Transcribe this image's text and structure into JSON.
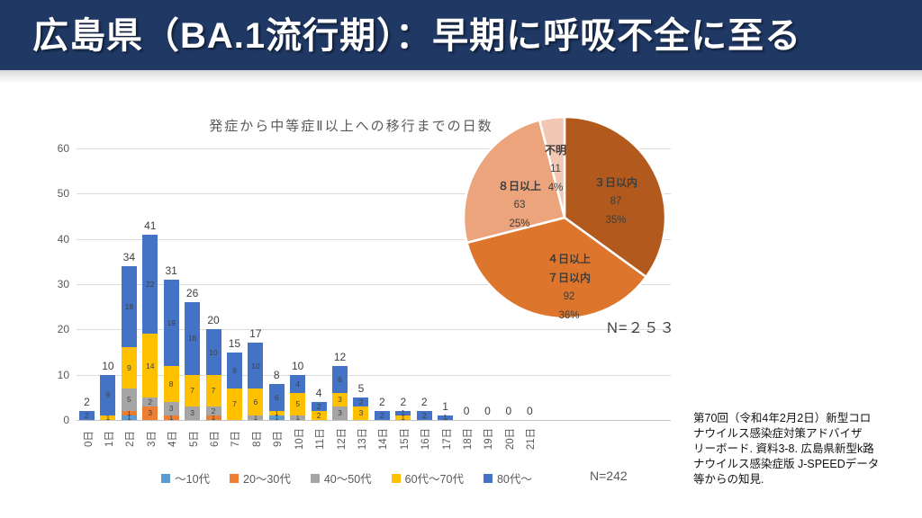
{
  "header": {
    "title": "広島県（BA.1流行期）：早期に呼吸不全に至る",
    "bg_color": "#1f3864",
    "text_color": "#ffffff"
  },
  "chart_data": [
    {
      "type": "bar",
      "stacked": true,
      "title": "発症から中等症Ⅱ以上への移行までの日数",
      "categories": [
        "0日",
        "1日",
        "2日",
        "3日",
        "4日",
        "5日",
        "6日",
        "7日",
        "8日",
        "9日",
        "10日",
        "11日",
        "12日",
        "13日",
        "14日",
        "15日",
        "16日",
        "17日",
        "18日",
        "19日",
        "20日",
        "21日"
      ],
      "series": [
        {
          "name": "～10代",
          "color": "#5b9bd5",
          "values": [
            0,
            0,
            1,
            0,
            0,
            0,
            0,
            0,
            0,
            1,
            0,
            0,
            0,
            0,
            0,
            0,
            0,
            0,
            0,
            0,
            0,
            0
          ]
        },
        {
          "name": "20～30代",
          "color": "#ed7d31",
          "values": [
            0,
            0,
            1,
            3,
            1,
            0,
            1,
            0,
            0,
            0,
            0,
            0,
            0,
            0,
            0,
            0,
            0,
            0,
            0,
            0,
            0,
            0
          ]
        },
        {
          "name": "40～50代",
          "color": "#a5a5a5",
          "values": [
            0,
            0,
            5,
            2,
            3,
            3,
            2,
            0,
            1,
            0,
            1,
            0,
            3,
            0,
            0,
            0,
            0,
            0,
            0,
            0,
            0,
            0
          ]
        },
        {
          "name": "60代～70代",
          "color": "#ffc000",
          "values": [
            0,
            1,
            9,
            14,
            8,
            7,
            7,
            7,
            6,
            1,
            5,
            2,
            3,
            3,
            0,
            1,
            0,
            0,
            0,
            0,
            0,
            0
          ]
        },
        {
          "name": "80代～",
          "color": "#4472c4",
          "values": [
            2,
            9,
            18,
            22,
            19,
            16,
            10,
            8,
            10,
            6,
            4,
            2,
            6,
            2,
            2,
            1,
            2,
            1,
            0,
            0,
            0,
            0
          ]
        }
      ],
      "totals": [
        2,
        10,
        34,
        41,
        31,
        26,
        20,
        15,
        17,
        8,
        10,
        4,
        12,
        5,
        2,
        2,
        2,
        1,
        0,
        0,
        0,
        0
      ],
      "ylim": [
        0,
        60
      ],
      "yticks": [
        0,
        10,
        20,
        30,
        40,
        50,
        60
      ],
      "grid": true,
      "legend_position": "bottom",
      "n_label": "N=242"
    },
    {
      "type": "pie",
      "slices": [
        {
          "lines": [
            "３日以内"
          ],
          "value": 87,
          "pct": "35%",
          "color": "#b25a1e"
        },
        {
          "lines": [
            "４日以上",
            "７日以内"
          ],
          "value": 92,
          "pct": "36%",
          "color": "#dd762c"
        },
        {
          "lines": [
            "８日以上"
          ],
          "value": 63,
          "pct": "25%",
          "color": "#eca47c"
        },
        {
          "lines": [
            "不明"
          ],
          "value": 11,
          "pct": "4%",
          "color": "#f3c8b3"
        }
      ],
      "n_label": "N=２５３"
    }
  ],
  "source_note": "第70回（令和4年2月2日）新型コロ\nナウイルス感染症対策アドバイザ\nリーボード. 資料3-8. 広島県新型k路\nナウイルス感染症版 J-SPEEDデータ\n等からの知見."
}
